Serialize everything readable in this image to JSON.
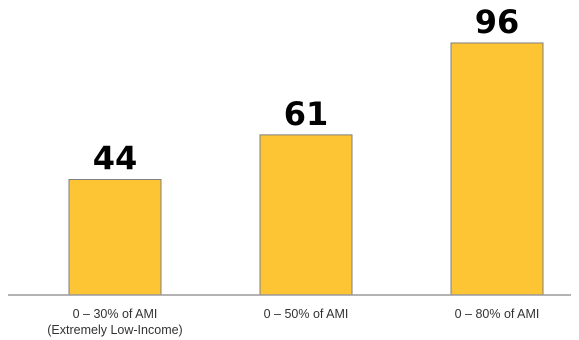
{
  "chart_data": {
    "type": "bar",
    "categories": [
      [
        "0 – 30% of AMI",
        "(Extremely Low-Income)"
      ],
      [
        "0 – 50% of AMI"
      ],
      [
        "0 – 80% of AMI"
      ]
    ],
    "values": [
      44,
      61,
      96
    ],
    "data_labels": [
      "44",
      "61",
      "96"
    ],
    "title": "",
    "xlabel": "",
    "ylabel": "",
    "ylim": [
      0,
      96
    ],
    "grid": false,
    "legend": "none",
    "bar_color": "#FDC533"
  }
}
